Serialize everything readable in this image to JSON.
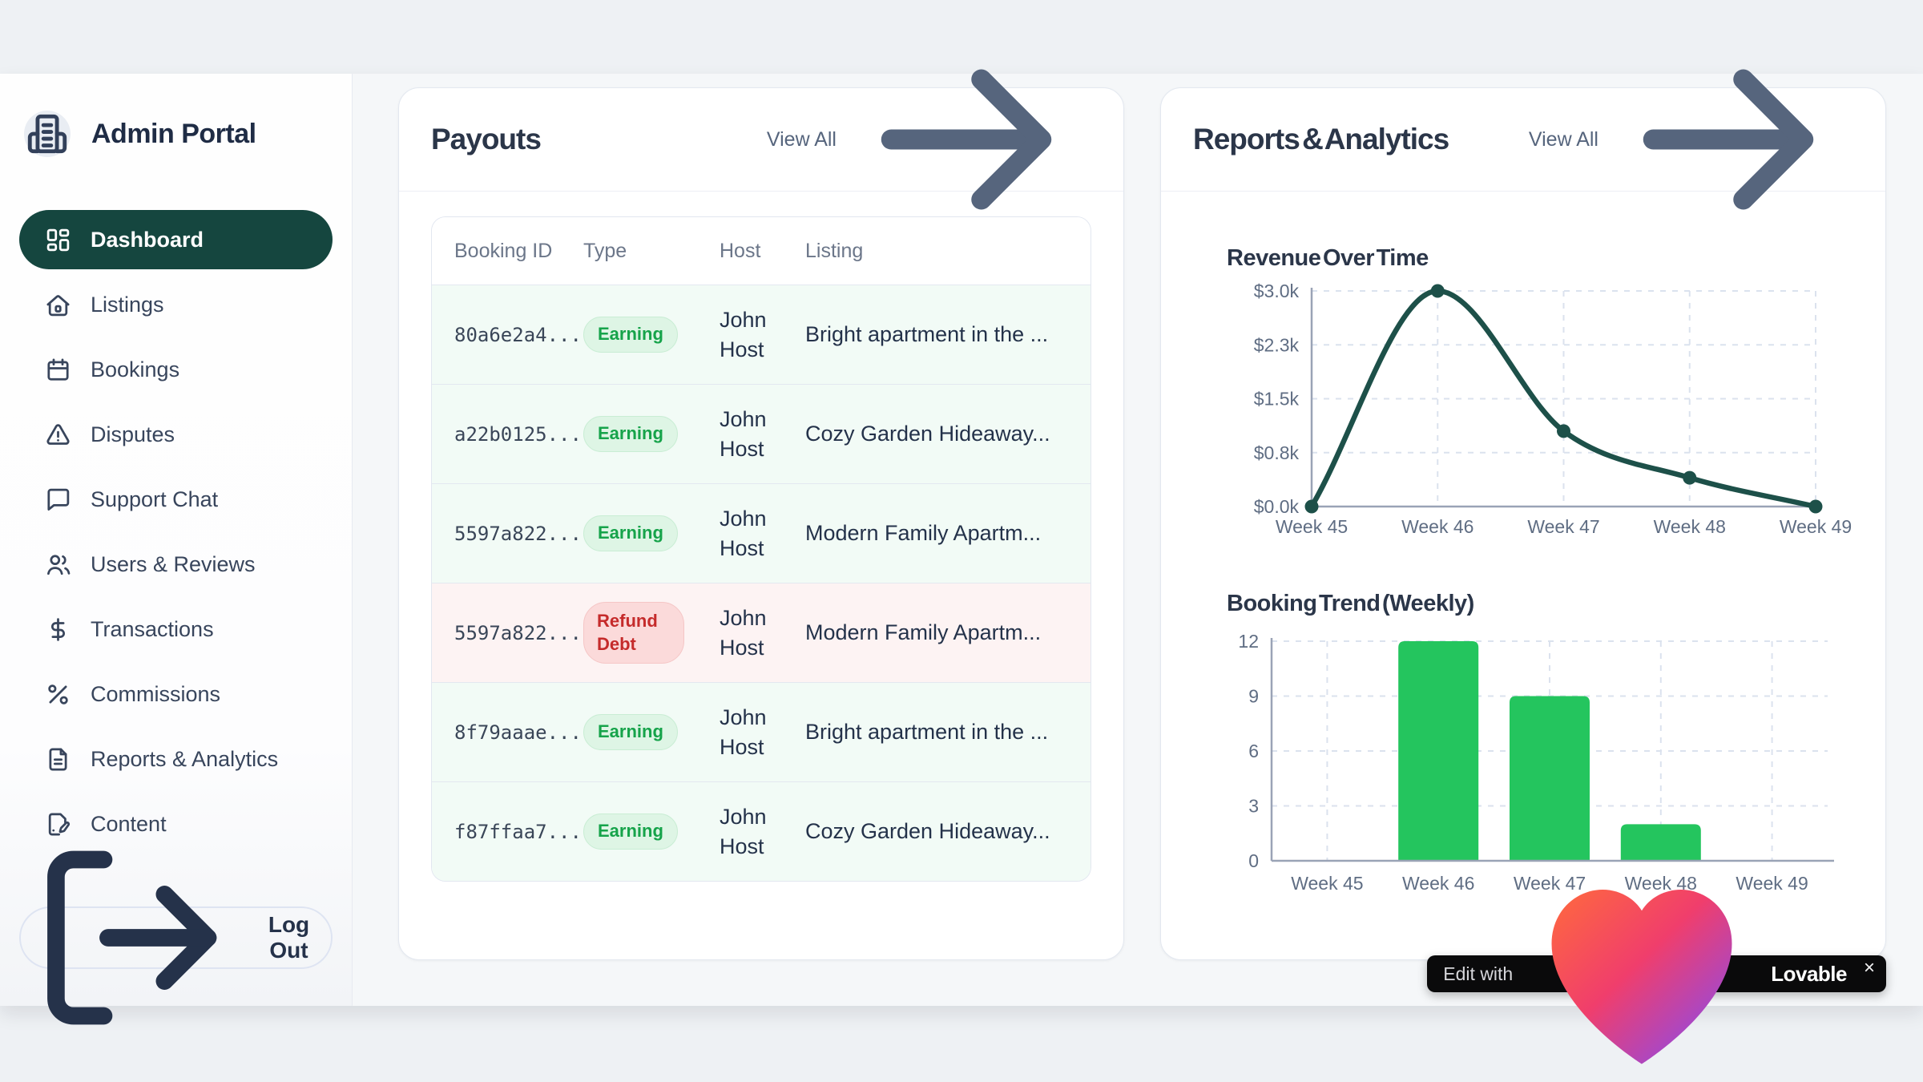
{
  "brand": {
    "title": "Admin Portal"
  },
  "sidebar": {
    "items": [
      {
        "label": "Dashboard",
        "icon": "dashboard",
        "active": true
      },
      {
        "label": "Listings",
        "icon": "home",
        "active": false
      },
      {
        "label": "Bookings",
        "icon": "calendar",
        "active": false
      },
      {
        "label": "Disputes",
        "icon": "alert-triangle",
        "active": false
      },
      {
        "label": "Support Chat",
        "icon": "message-square",
        "active": false
      },
      {
        "label": "Users & Reviews",
        "icon": "users",
        "active": false
      },
      {
        "label": "Transactions",
        "icon": "dollar-sign",
        "active": false
      },
      {
        "label": "Commissions",
        "icon": "percent",
        "active": false
      },
      {
        "label": "Reports & Analytics",
        "icon": "file-text",
        "active": false
      },
      {
        "label": "Content",
        "icon": "file-pen",
        "active": false
      }
    ],
    "logout_label": "Log Out"
  },
  "payouts": {
    "title": "Payouts",
    "view_all_label": "View All",
    "table": {
      "headers": [
        "Booking ID",
        "Type",
        "Host",
        "Listing"
      ],
      "rows": [
        {
          "booking_id": "80a6e2a4...",
          "type": "Earning",
          "variant": "earning",
          "host": "John Host",
          "listing": "Bright apartment in the ..."
        },
        {
          "booking_id": "a22b0125...",
          "type": "Earning",
          "variant": "earning",
          "host": "John Host",
          "listing": "Cozy Garden Hideaway..."
        },
        {
          "booking_id": "5597a822...",
          "type": "Earning",
          "variant": "earning",
          "host": "John Host",
          "listing": "Modern Family Apartm..."
        },
        {
          "booking_id": "5597a822...",
          "type": "Refund Debt",
          "variant": "refund",
          "host": "John Host",
          "listing": "Modern Family Apartm..."
        },
        {
          "booking_id": "8f79aaae...",
          "type": "Earning",
          "variant": "earning",
          "host": "John Host",
          "listing": "Bright apartment in the ..."
        },
        {
          "booking_id": "f87ffaa7...",
          "type": "Earning",
          "variant": "earning",
          "host": "John Host",
          "listing": "Cozy Garden Hideaway..."
        }
      ]
    }
  },
  "reports": {
    "title": "Reports & Analytics",
    "view_all_label": "View All"
  },
  "chart_data": [
    {
      "id": "revenue-over-time",
      "type": "line",
      "title": "Revenue Over Time",
      "x": [
        "Week 45",
        "Week 46",
        "Week 47",
        "Week 48",
        "Week 49"
      ],
      "values": [
        0,
        3000,
        1050,
        400,
        0
      ],
      "ylim": [
        0,
        3000
      ],
      "y_ticks": {
        "values": [
          0,
          750,
          1500,
          2250,
          3000
        ],
        "labels": [
          "$0.0k",
          "$0.8k",
          "$1.5k",
          "$2.3k",
          "$3.0k"
        ]
      },
      "line_color": "#1d5049",
      "grid": "dashed",
      "legend": "none"
    },
    {
      "id": "booking-trend-weekly",
      "type": "bar",
      "title": "Booking Trend (Weekly)",
      "x": [
        "Week 45",
        "Week 46",
        "Week 47",
        "Week 48",
        "Week 49"
      ],
      "values": [
        0,
        12,
        9,
        2,
        0
      ],
      "ylim": [
        0,
        12
      ],
      "y_ticks": {
        "values": [
          0,
          3,
          6,
          9,
          12
        ],
        "labels": [
          "0",
          "3",
          "6",
          "9",
          "12"
        ]
      },
      "bar_color": "#24c55e",
      "grid": "dashed",
      "legend": "none"
    }
  ],
  "lovable": {
    "prefix": "Edit with",
    "brand": "Lovable",
    "close": "×"
  },
  "colors": {
    "accent_teal": "#15463f",
    "line_teal": "#1d5049",
    "bar_green": "#24c55e",
    "earning_text": "#16a34a",
    "refund_text": "#c52b2b"
  }
}
